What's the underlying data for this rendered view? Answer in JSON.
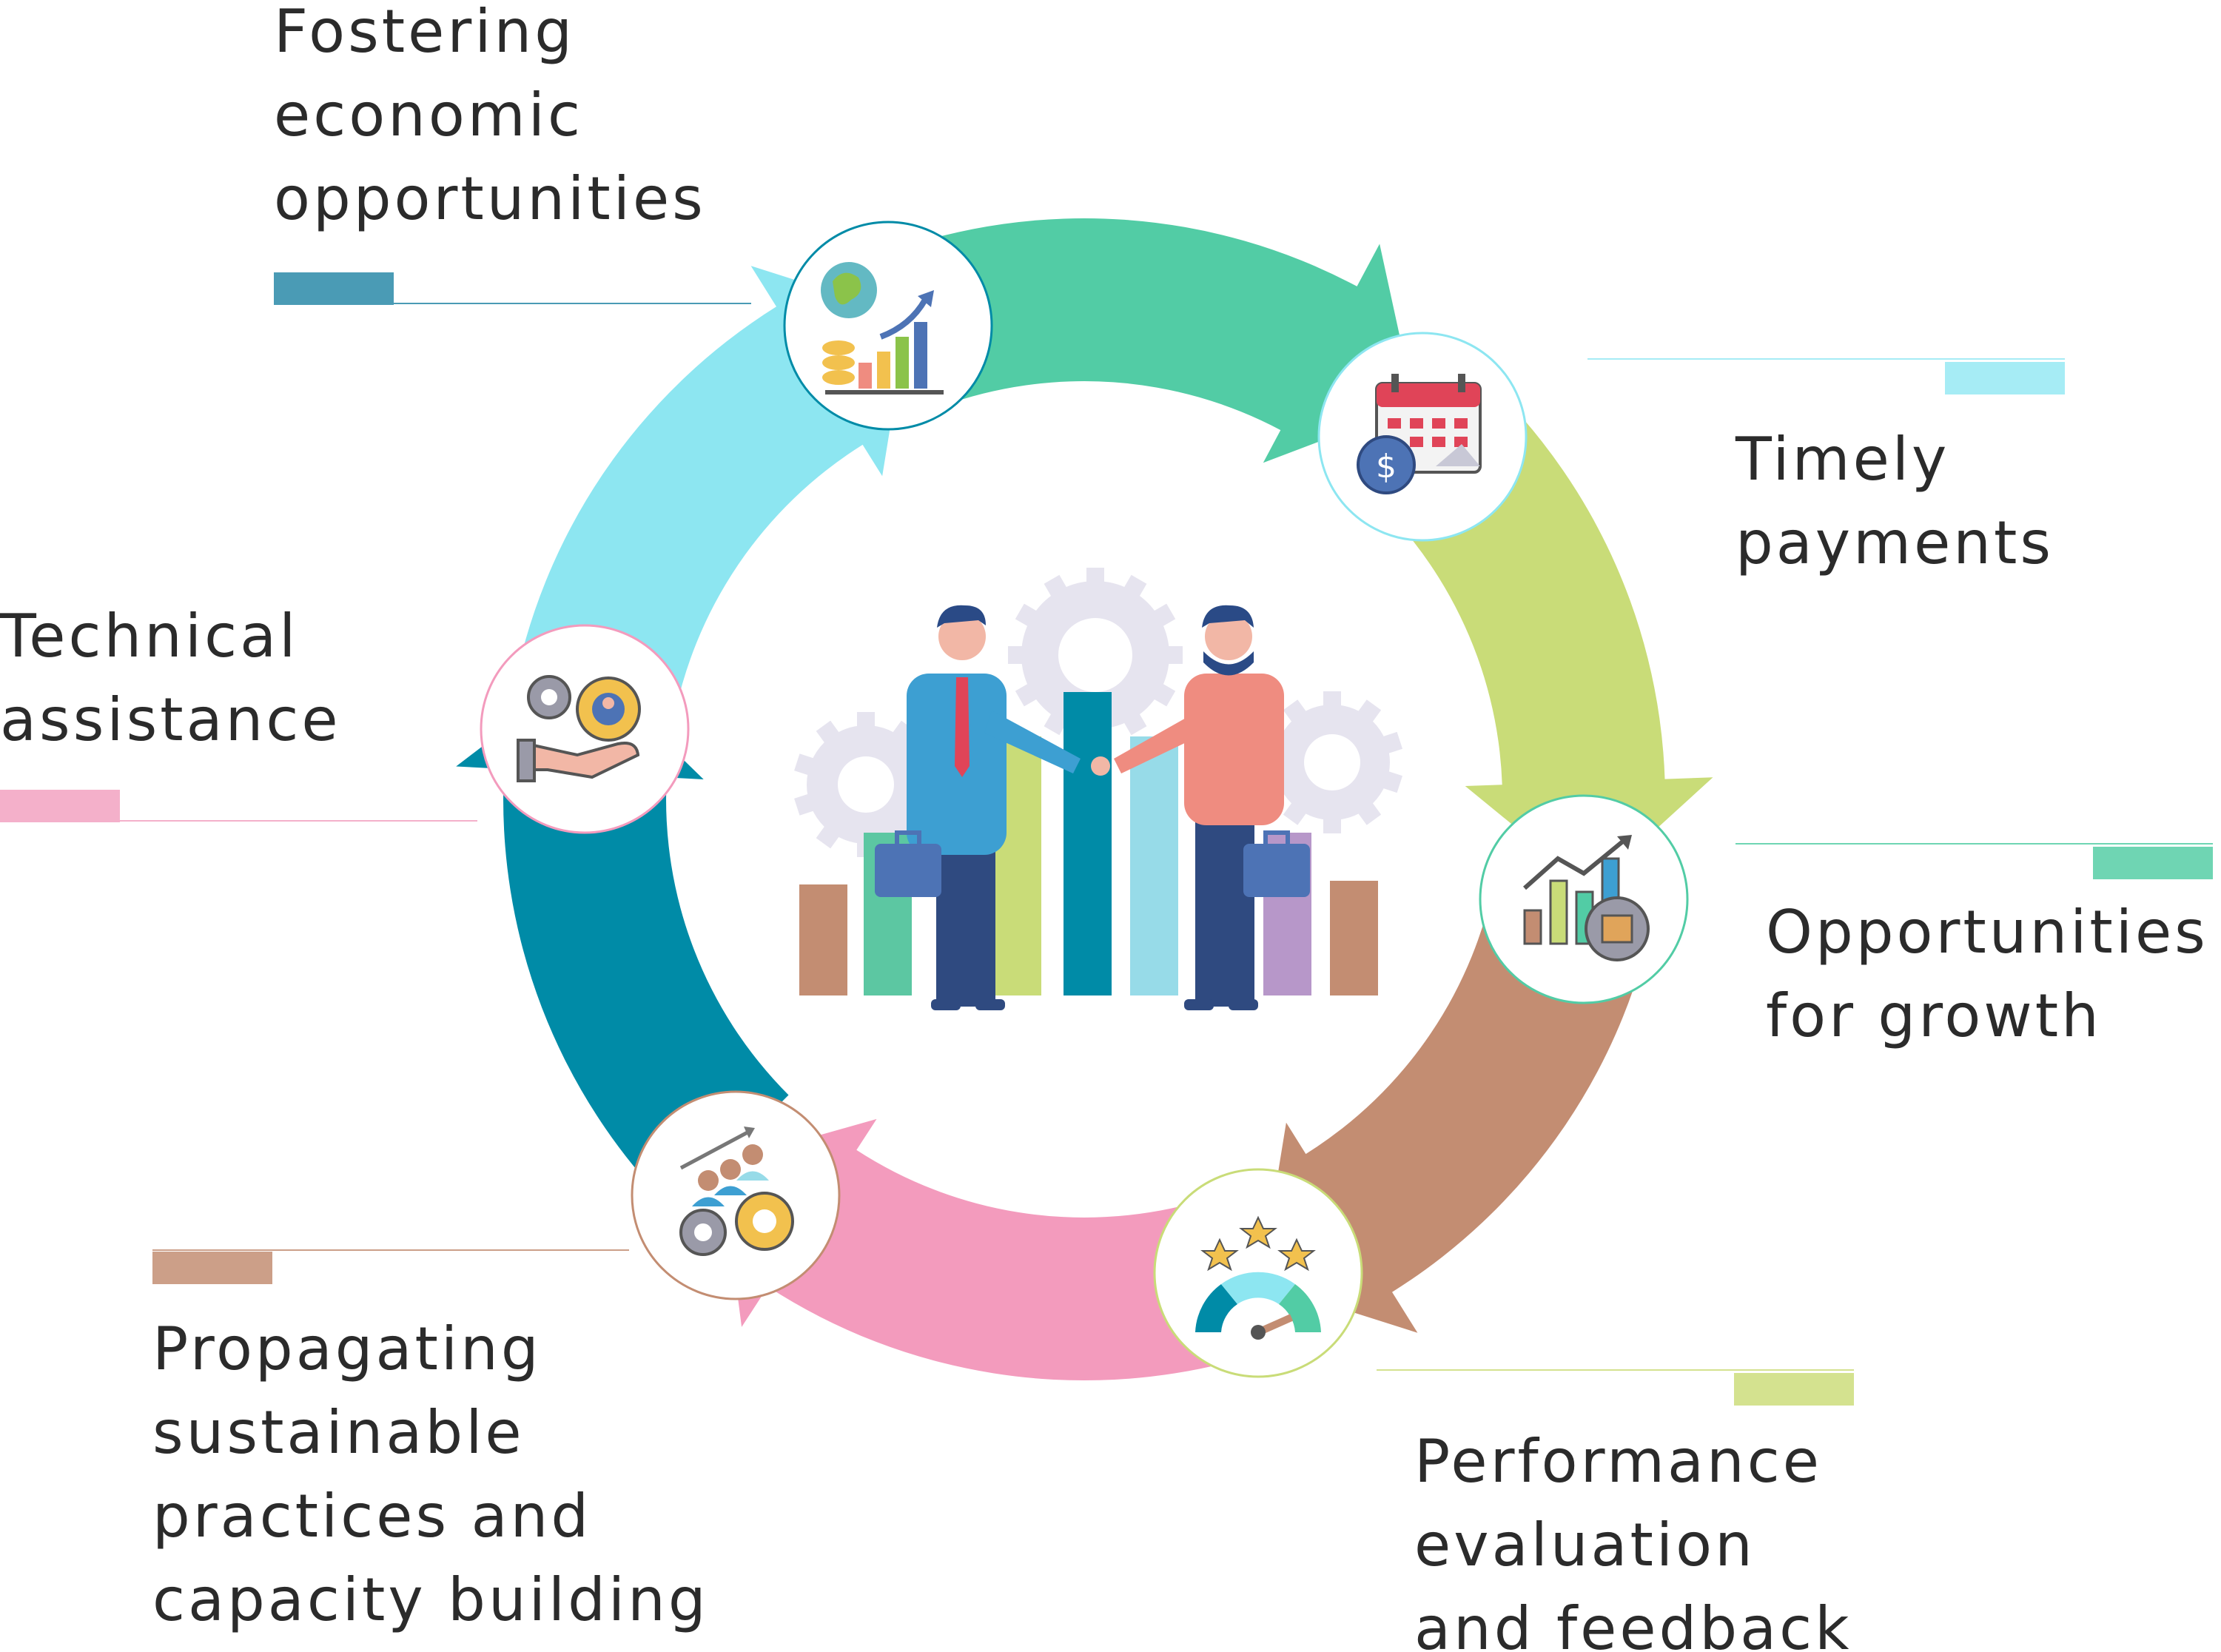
{
  "center": {
    "icon": "business-handshake-illustration"
  },
  "segments": [
    {
      "id": "fostering",
      "lines": [
        "Fostering",
        "economic",
        "opportunities"
      ],
      "color": "#008ba7",
      "accent": "#4a9bb5",
      "icon": "globe-growth-chart-icon"
    },
    {
      "id": "timely",
      "lines": [
        "Timely",
        "payments"
      ],
      "color": "#8de6f1",
      "accent": "#a6ecf5",
      "icon": "calendar-dollar-icon"
    },
    {
      "id": "growth",
      "lines": [
        "Opportunities",
        "for growth"
      ],
      "color": "#52cca5",
      "accent": "#6fd5b3",
      "icon": "growth-chart-box-icon"
    },
    {
      "id": "performance",
      "lines": [
        "Performance",
        "evaluation",
        "and  feedback"
      ],
      "color": "#c9dc78",
      "accent": "#d4e28f",
      "icon": "rating-gauge-icon"
    },
    {
      "id": "propagating",
      "lines": [
        "Propagating",
        "sustainable",
        "practices and",
        "capacity building"
      ],
      "color": "#c38d72",
      "accent": "#cc9f88",
      "icon": "team-gears-icon"
    },
    {
      "id": "technical",
      "lines": [
        "Technical",
        "assistance"
      ],
      "color": "#f39bbd",
      "accent": "#f4b0ca",
      "icon": "gears-hand-support-icon"
    }
  ]
}
